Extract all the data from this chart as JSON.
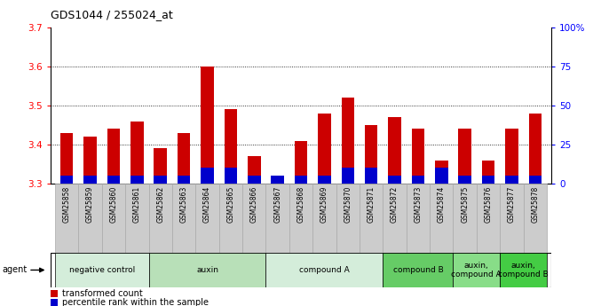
{
  "title": "GDS1044 / 255024_at",
  "samples": [
    "GSM25858",
    "GSM25859",
    "GSM25860",
    "GSM25861",
    "GSM25862",
    "GSM25863",
    "GSM25864",
    "GSM25865",
    "GSM25866",
    "GSM25867",
    "GSM25868",
    "GSM25869",
    "GSM25870",
    "GSM25871",
    "GSM25872",
    "GSM25873",
    "GSM25874",
    "GSM25875",
    "GSM25876",
    "GSM25877",
    "GSM25878"
  ],
  "red_values": [
    3.43,
    3.42,
    3.44,
    3.46,
    3.39,
    3.43,
    3.6,
    3.49,
    3.37,
    3.32,
    3.41,
    3.48,
    3.52,
    3.45,
    3.47,
    3.44,
    3.36,
    3.44,
    3.36,
    3.44,
    3.48
  ],
  "blue_percentile": [
    5,
    5,
    5,
    5,
    5,
    5,
    10,
    10,
    5,
    5,
    5,
    5,
    10,
    10,
    5,
    5,
    10,
    5,
    5,
    5,
    5
  ],
  "ylim_left": [
    3.3,
    3.7
  ],
  "ylim_right": [
    0,
    100
  ],
  "yticks_left": [
    3.3,
    3.4,
    3.5,
    3.6,
    3.7
  ],
  "yticks_right": [
    0,
    25,
    50,
    75,
    100
  ],
  "ytick_labels_right": [
    "0",
    "25",
    "50",
    "75",
    "100%"
  ],
  "grid_values": [
    3.4,
    3.5,
    3.6
  ],
  "bar_width": 0.55,
  "agent_groups": [
    {
      "label": "negative control",
      "start": 0,
      "end": 3,
      "color": "#d4edda"
    },
    {
      "label": "auxin",
      "start": 4,
      "end": 8,
      "color": "#b8e0b8"
    },
    {
      "label": "compound A",
      "start": 9,
      "end": 13,
      "color": "#d4edda"
    },
    {
      "label": "compound B",
      "start": 14,
      "end": 16,
      "color": "#66cc66"
    },
    {
      "label": "auxin,\ncompound A",
      "start": 17,
      "end": 18,
      "color": "#88dd88"
    },
    {
      "label": "auxin,\ncompound B",
      "start": 19,
      "end": 20,
      "color": "#44cc44"
    }
  ],
  "red_color": "#cc0000",
  "blue_color": "#0000cc",
  "bar_baseline": 3.3,
  "tick_bg_color": "#cccccc",
  "tick_border_color": "#aaaaaa",
  "plot_bg_color": "#ffffff",
  "fig_bg_color": "#ffffff"
}
